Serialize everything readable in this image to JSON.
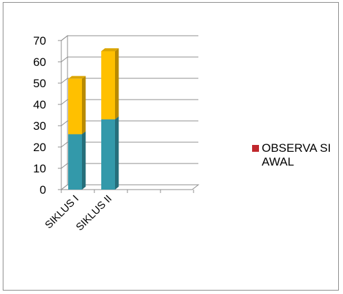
{
  "chart_data": {
    "type": "bar",
    "stacked": true,
    "three_d": true,
    "categories": [
      "SIKLUS I",
      "SIKLUS II"
    ],
    "series": [
      {
        "values": [
          26,
          33
        ],
        "color": "#3399aa"
      },
      {
        "values": [
          26,
          32
        ],
        "color": "#ffc000"
      }
    ],
    "legend": {
      "label": "OBSERVA SI AWAL",
      "color": "#c0282d",
      "placement": "right"
    },
    "ylim": [
      0,
      70
    ],
    "yticks": [
      "0",
      "10",
      "20",
      "30",
      "40",
      "50",
      "60",
      "70"
    ],
    "grid": true,
    "title": "",
    "xlabel": "",
    "ylabel": ""
  }
}
